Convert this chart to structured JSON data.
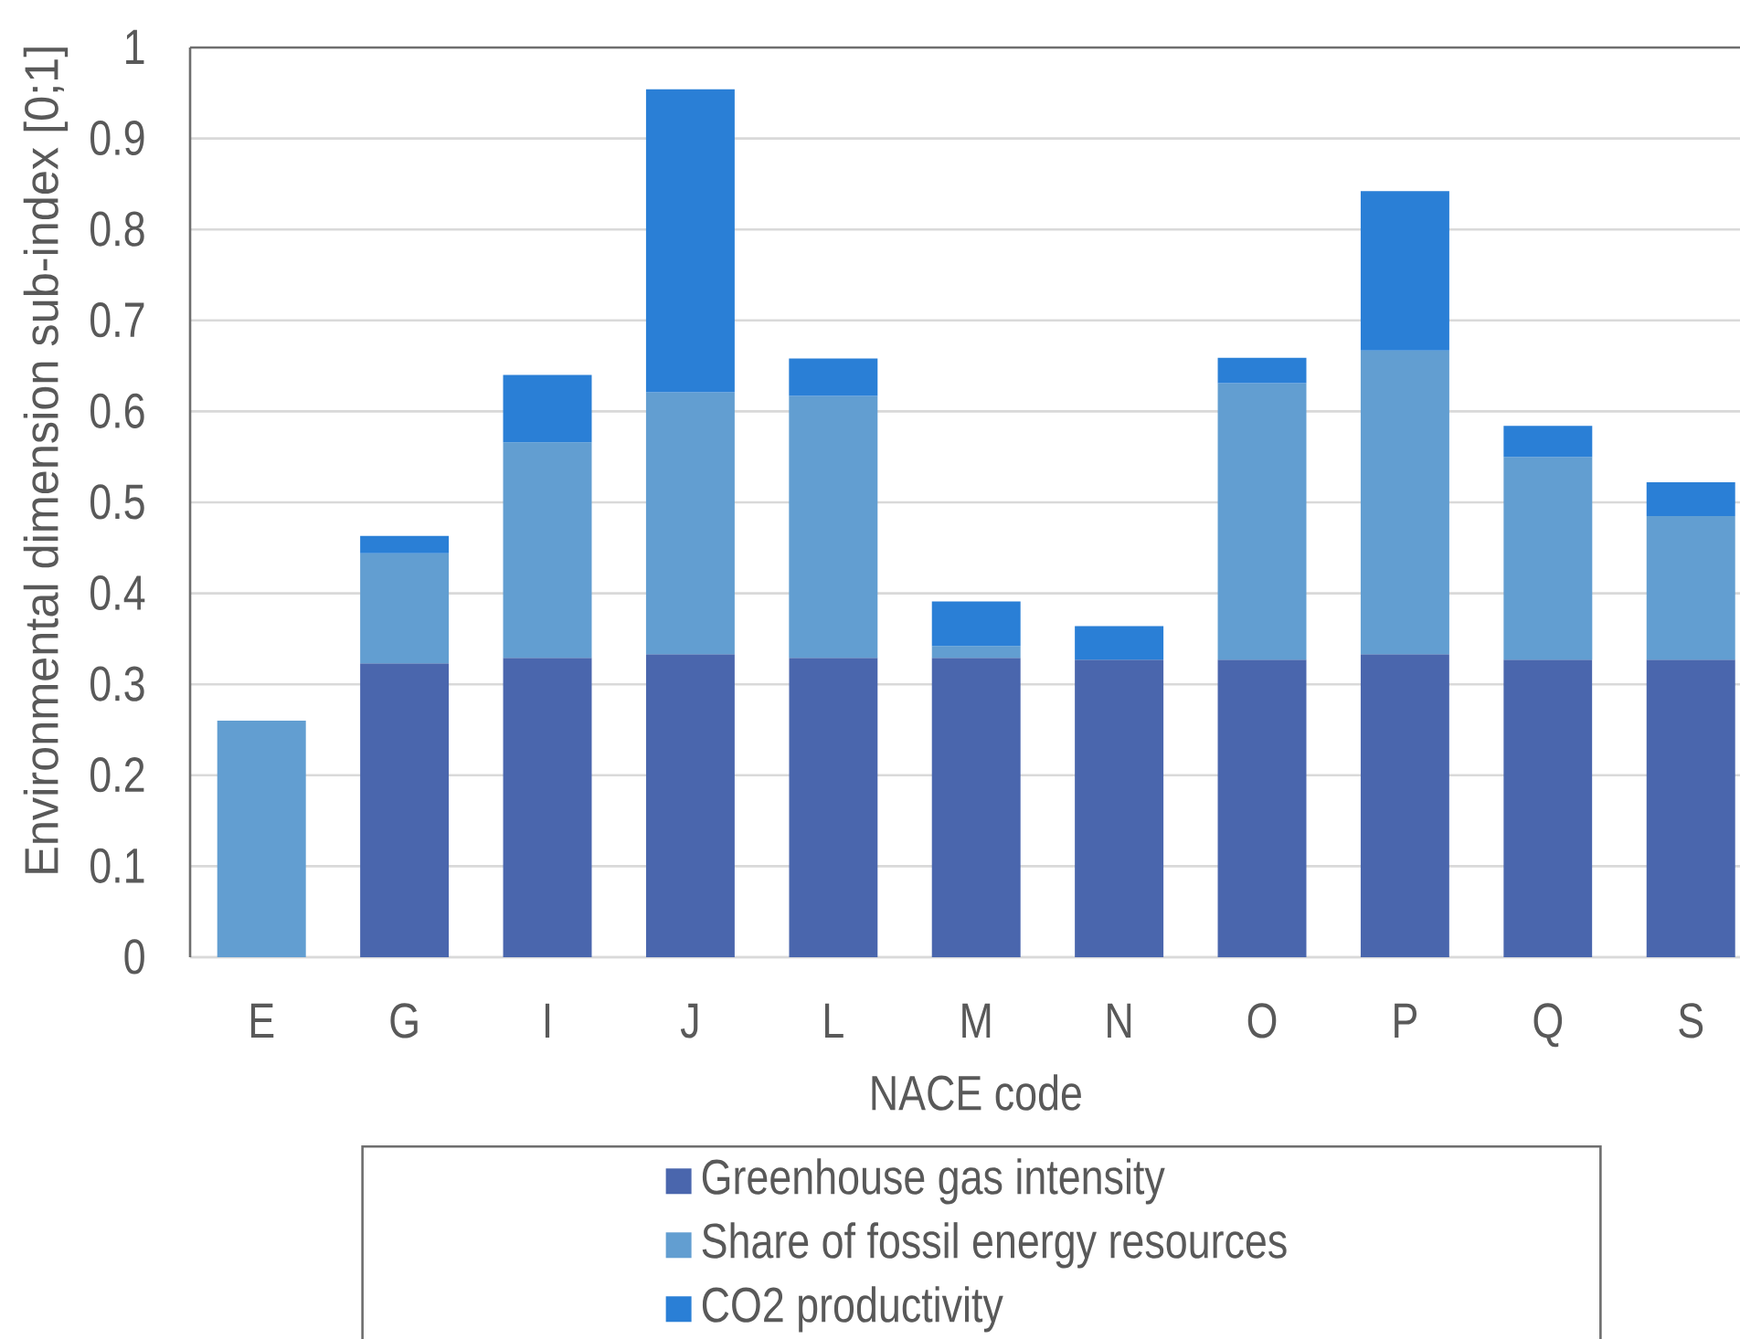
{
  "chart_data": {
    "type": "bar",
    "stacked": true,
    "xlabel": "NACE code",
    "ylabel": "Environmental dimension sub-index [0;1]",
    "categories": [
      "E",
      "G",
      "I",
      "J",
      "L",
      "M",
      "N",
      "O",
      "P",
      "Q",
      "S"
    ],
    "series": [
      {
        "name": "Greenhouse gas intensity",
        "color": "#4a66ad",
        "values": [
          0,
          0.323,
          0.329,
          0.333,
          0.329,
          0.329,
          0.327,
          0.327,
          0.333,
          0.327,
          0.327
        ]
      },
      {
        "name": "Share of fossil energy resources",
        "color": "#629ed1",
        "values": [
          0.26,
          0.121,
          0.237,
          0.288,
          0.288,
          0.013,
          0,
          0.304,
          0.334,
          0.223,
          0.158
        ]
      },
      {
        "name": "CO2 productivity",
        "color": "#2a7fd6",
        "values": [
          0,
          0.019,
          0.074,
          0.333,
          0.041,
          0.049,
          0.037,
          0.028,
          0.175,
          0.034,
          0.037
        ]
      }
    ],
    "ylim": [
      0,
      1
    ],
    "yticks": [
      0,
      0.1,
      0.2,
      0.3,
      0.4,
      0.5,
      0.6,
      0.7,
      0.8,
      0.9,
      1
    ],
    "grid": "y",
    "legend": "bottom"
  }
}
